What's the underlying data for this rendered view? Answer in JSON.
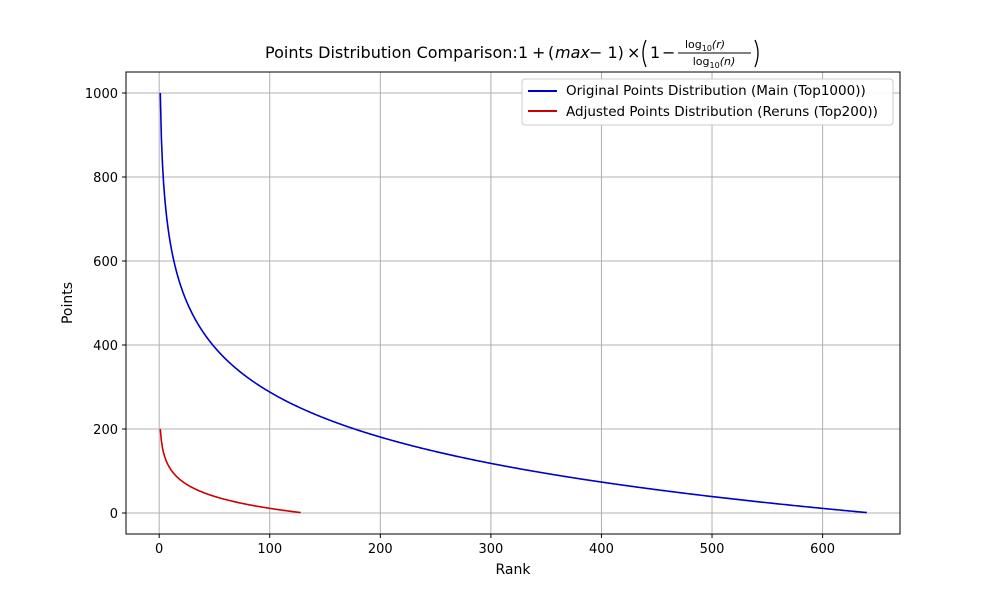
{
  "chart_data": {
    "type": "line",
    "title": {
      "prefix": "Points Distribution Comparison: ",
      "formula": {
        "one": "1",
        "plus": "+",
        "max_var": "max",
        "minus_one": "− 1)",
        "times": "×",
        "inner_one": "1",
        "inner_minus": "−",
        "numerator": "log",
        "numerator_sub": "10",
        "numerator_arg": "(r)",
        "denominator": "log",
        "denominator_sub": "10",
        "denominator_arg": "(n)"
      }
    },
    "xlabel": "Rank",
    "ylabel": "Points",
    "xlim": [
      -30,
      670
    ],
    "ylim": [
      -50,
      1050
    ],
    "xticks": [
      0,
      100,
      200,
      300,
      400,
      500,
      600
    ],
    "yticks": [
      0,
      200,
      400,
      600,
      800,
      1000
    ],
    "grid": true,
    "legend_position": "top-right",
    "series": [
      {
        "name": "Original Points Distribution (Main (Top1000))",
        "color": "#0000cc",
        "formula_params": {
          "max": 1000,
          "n": 640
        },
        "x": [
          1,
          2,
          3,
          5,
          10,
          20,
          50,
          100,
          200,
          300,
          400,
          500,
          600,
          640
        ],
        "y": [
          1000,
          893,
          830,
          751,
          644,
          537,
          396,
          288,
          181,
          118,
          74,
          39,
          11,
          1
        ]
      },
      {
        "name": "Adjusted Points Distribution (Reruns (Top200))",
        "color": "#cc0000",
        "formula_params": {
          "max": 200,
          "n": 128
        },
        "x": [
          1,
          2,
          3,
          5,
          10,
          20,
          50,
          100,
          128
        ],
        "y": [
          200,
          172,
          155,
          134,
          106,
          77,
          39,
          11,
          1
        ]
      }
    ]
  }
}
